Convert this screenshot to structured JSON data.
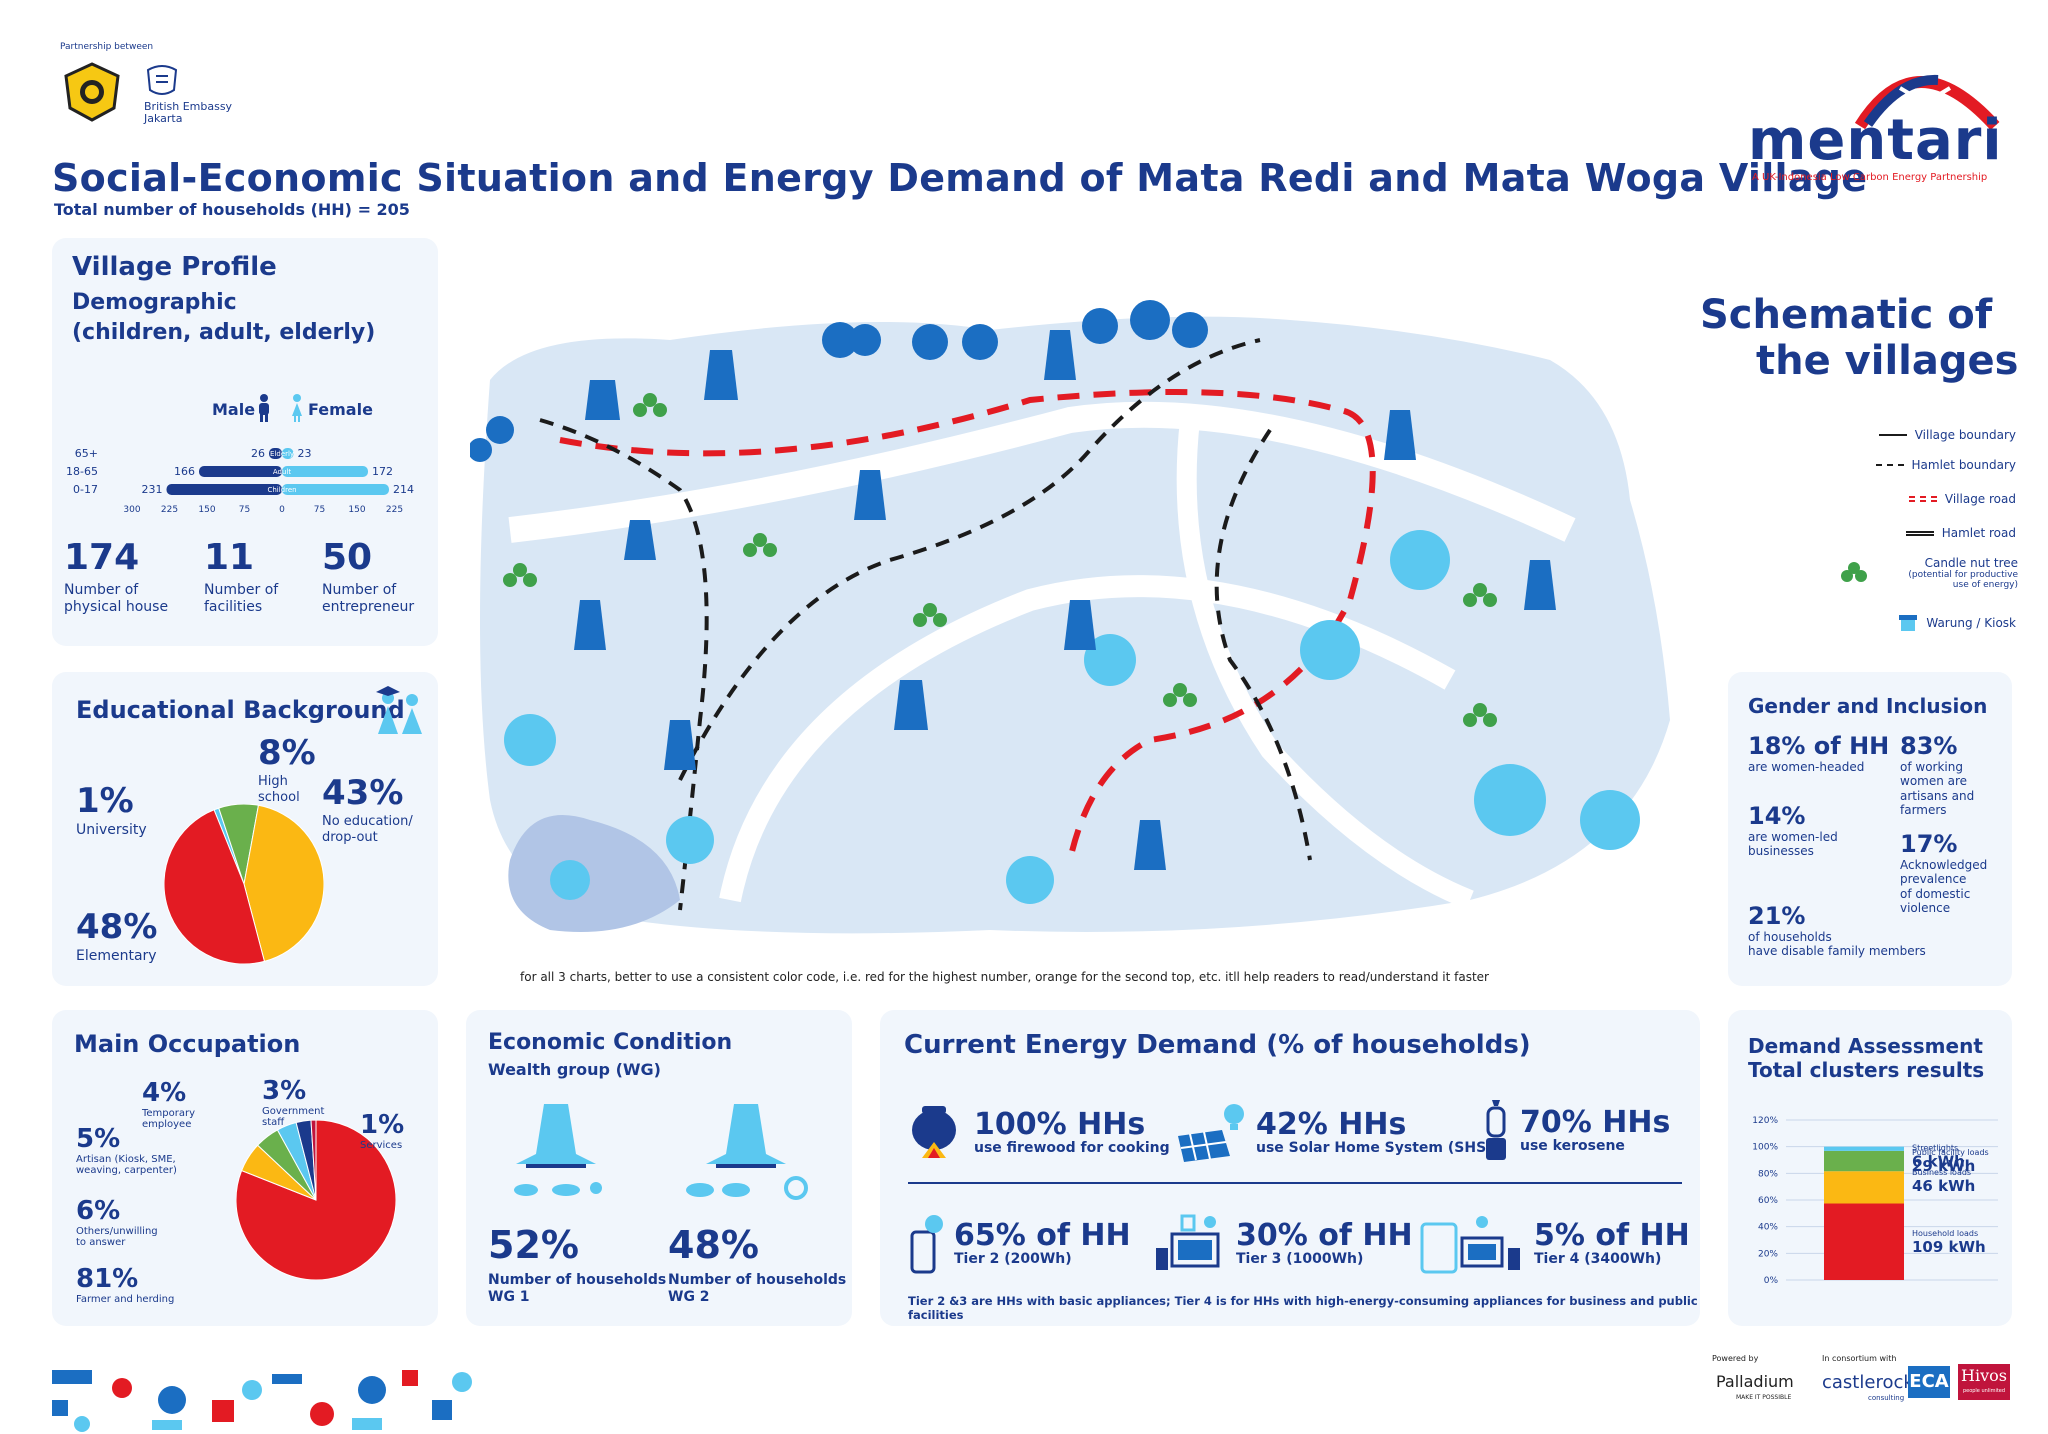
{
  "header": {
    "partnership_label": "Partnership between",
    "embassy_label_1": "British Embassy",
    "embassy_label_2": "Jakarta",
    "title": "Social-Economic Situation and Energy Demand of Mata Redi and Mata Woga Village",
    "subtitle": "Total number of households (HH) = 205",
    "brand_name": "mentari",
    "brand_tagline": "A UK-Indonesia Low Carbon Energy Partnership"
  },
  "village_profile": {
    "title": "Village Profile",
    "subtitle_1": "Demographic",
    "subtitle_2": "(children, adult, elderly)",
    "male_label": "Male",
    "female_label": "Female",
    "pyramid": {
      "rows": [
        {
          "age": "65+",
          "male": 26,
          "female": 23,
          "label": "Elderly"
        },
        {
          "age": "18-65",
          "male": 166,
          "female": 172,
          "label": "Adult"
        },
        {
          "age": "0-17",
          "male": 231,
          "female": 214,
          "label": "Children"
        }
      ],
      "axis_ticks": [
        "300",
        "225",
        "150",
        "75",
        "0",
        "75",
        "150",
        "225"
      ],
      "max": 300
    },
    "stats": [
      {
        "value": "174",
        "label_1": "Number of",
        "label_2": "physical house"
      },
      {
        "value": "11",
        "label_1": "Number of",
        "label_2": "facilities"
      },
      {
        "value": "50",
        "label_1": "Number of",
        "label_2": "entrepreneur"
      }
    ]
  },
  "education": {
    "title": "Educational Background",
    "slices": [
      {
        "pct": "1%",
        "value": 1,
        "label_1": "University",
        "label_2": "",
        "color": "#5bc8f0"
      },
      {
        "pct": "8%",
        "value": 8,
        "label_1": "High",
        "label_2": "school",
        "color": "#6ab04c"
      },
      {
        "pct": "43%",
        "value": 43,
        "label_1": "No education/",
        "label_2": "drop-out",
        "color": "#fbb813"
      },
      {
        "pct": "48%",
        "value": 48,
        "label_1": "Elementary",
        "label_2": "",
        "color": "#e31b23"
      }
    ]
  },
  "schematic": {
    "title_1": "Schematic of",
    "title_2": "the villages",
    "legend": [
      {
        "label": "Village boundary",
        "style": "solid"
      },
      {
        "label": "Hamlet boundary",
        "style": "dash"
      },
      {
        "label": "Village road",
        "style": "red"
      },
      {
        "label": "Hamlet road",
        "style": "double"
      },
      {
        "label": "Candle nut tree",
        "style": "tree",
        "note_1": "(potential for productive",
        "note_2": "use of energy)"
      },
      {
        "label": "Warung / Kiosk",
        "style": "kiosk"
      }
    ],
    "note": "for all 3 charts, better to use a consistent color code, i.e. red for the highest number, orange for the second top, etc. itll help readers to read/understand it faster"
  },
  "gender": {
    "title": "Gender and Inclusion",
    "items": [
      {
        "pct": "18% of HH",
        "lines": [
          "are women-headed"
        ]
      },
      {
        "pct": "83%",
        "lines": [
          "of working",
          "women are",
          "artisans and",
          "farmers"
        ]
      },
      {
        "pct": "14%",
        "lines": [
          "are women-led",
          "businesses"
        ]
      },
      {
        "pct": "17%",
        "lines": [
          "Acknowledged",
          "prevalence",
          "of domestic",
          "violence"
        ]
      },
      {
        "pct": "21%",
        "lines": [
          "of households",
          "have disable family members"
        ]
      }
    ]
  },
  "occupation": {
    "title": "Main Occupation",
    "slices": [
      {
        "pct": "81%",
        "value": 81,
        "label_1": "Farmer and herding",
        "label_2": "",
        "color": "#e31b23"
      },
      {
        "pct": "6%",
        "value": 6,
        "label_1": "Others/unwilling",
        "label_2": "to answer",
        "color": "#fbb813"
      },
      {
        "pct": "5%",
        "value": 5,
        "label_1": "Artisan (Kiosk, SME,",
        "label_2": "weaving, carpenter)",
        "color": "#6ab04c"
      },
      {
        "pct": "4%",
        "value": 4,
        "label_1": "Temporary",
        "label_2": "employee",
        "color": "#5bc8f0"
      },
      {
        "pct": "3%",
        "value": 3,
        "label_1": "Government",
        "label_2": "staff",
        "color": "#1b3a8c"
      },
      {
        "pct": "1%",
        "value": 1,
        "label_1": "Services",
        "label_2": "",
        "color": "#c0143c"
      }
    ]
  },
  "economic": {
    "title": "Economic Condition",
    "subtitle": "Wealth group (WG)",
    "groups": [
      {
        "pct": "52%",
        "label": "Number of households",
        "wg": "WG 1"
      },
      {
        "pct": "48%",
        "label": "Number of  households",
        "wg": "WG 2"
      }
    ]
  },
  "energy": {
    "title": "Current Energy Demand (% of households)",
    "top": [
      {
        "pct": "100% HHs",
        "label": "use firewood for cooking"
      },
      {
        "pct": "42% HHs",
        "label": "use Solar Home System (SHS)"
      },
      {
        "pct": "70% HHs",
        "label": "use kerosene"
      }
    ],
    "tiers": [
      {
        "pct": "65% of HH",
        "label": "Tier 2 (200Wh)"
      },
      {
        "pct": "30% of HH",
        "label": "Tier 3 (1000Wh)"
      },
      {
        "pct": "5% of HH",
        "label": "Tier 4 (3400Wh)"
      }
    ],
    "note": "Tier 2 &3 are HHs with basic appliances; Tier 4 is for HHs with high-energy-consuming appliances for business and public facilities"
  },
  "demand": {
    "title_1": "Demand Assessment",
    "title_2": "Total clusters results",
    "y_ticks": [
      "120%",
      "100%",
      "80%",
      "60%",
      "40%",
      "20%",
      "0%"
    ],
    "chart_data": {
      "type": "bar",
      "stacked": true,
      "ylim": [
        0,
        120
      ],
      "series": [
        {
          "name": "Household loads",
          "value": "109 kWh",
          "kwh": 109,
          "color": "#e31b23"
        },
        {
          "name": "Business loads",
          "value": "46 kWh",
          "kwh": 46,
          "color": "#fbb813"
        },
        {
          "name": "Public facility loads",
          "value": "29 kWh",
          "kwh": 29,
          "color": "#6ab04c"
        },
        {
          "name": "Streetlights",
          "value": "6 kWh",
          "kwh": 6,
          "color": "#5bc8f0"
        }
      ]
    }
  },
  "footer": {
    "powered_by": "Powered by",
    "consortium": "In consortium with",
    "palladium": "Palladium",
    "palladium_tag": "MAKE IT POSSIBLE",
    "castlerock": "castlerock",
    "castlerock_tag": "consulting",
    "eca": "ECA",
    "hivos": "Hivos",
    "hivos_tag": "people unlimited"
  }
}
